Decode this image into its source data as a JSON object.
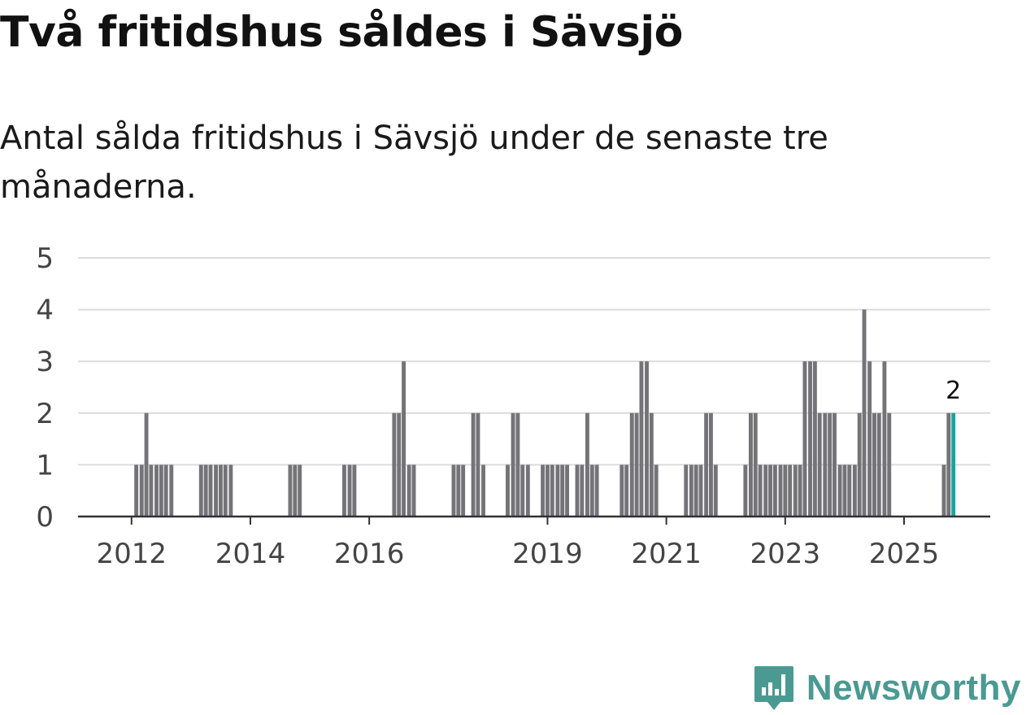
{
  "title": "Två fritidshus såldes i Sävsjö",
  "subtitle": "Antal sålda fritidshus i Sävsjö under de senaste tre månaderna.",
  "brand": {
    "name": "Newsworthy",
    "color": "#4a9a92",
    "icon": "bar-chart-badge-icon"
  },
  "chart_data": {
    "type": "bar",
    "title": "Två fritidshus såldes i Sävsjö",
    "subtitle": "Antal sålda fritidshus i Sävsjö under de senaste tre månaderna.",
    "xlabel": "",
    "ylabel": "",
    "ylim": [
      0,
      5
    ],
    "yticks": [
      0,
      1,
      2,
      3,
      4,
      5
    ],
    "grid": true,
    "bar_color": "#737378",
    "highlight_color": "#1aa39a",
    "x_start": 2011.1,
    "x_end": 2026.45,
    "xtick_labels": [
      {
        "label": "2012",
        "x": 2012.0
      },
      {
        "label": "2014",
        "x": 2014.0
      },
      {
        "label": "2016",
        "x": 2016.0
      },
      {
        "label": "2019",
        "x": 2019.0
      },
      {
        "label": "2021",
        "x": 2021.0
      },
      {
        "label": "2023",
        "x": 2023.0
      },
      {
        "label": "2025",
        "x": 2025.0
      }
    ],
    "bars": [
      {
        "x": 2012.08,
        "y": 1
      },
      {
        "x": 2012.17,
        "y": 1
      },
      {
        "x": 2012.25,
        "y": 2
      },
      {
        "x": 2012.33,
        "y": 1
      },
      {
        "x": 2012.42,
        "y": 1
      },
      {
        "x": 2012.5,
        "y": 1
      },
      {
        "x": 2012.58,
        "y": 1
      },
      {
        "x": 2012.67,
        "y": 1
      },
      {
        "x": 2013.17,
        "y": 1
      },
      {
        "x": 2013.25,
        "y": 1
      },
      {
        "x": 2013.33,
        "y": 1
      },
      {
        "x": 2013.42,
        "y": 1
      },
      {
        "x": 2013.5,
        "y": 1
      },
      {
        "x": 2013.58,
        "y": 1
      },
      {
        "x": 2013.67,
        "y": 1
      },
      {
        "x": 2014.67,
        "y": 1
      },
      {
        "x": 2014.75,
        "y": 1
      },
      {
        "x": 2014.83,
        "y": 1
      },
      {
        "x": 2015.58,
        "y": 1
      },
      {
        "x": 2015.67,
        "y": 1
      },
      {
        "x": 2015.75,
        "y": 1
      },
      {
        "x": 2016.42,
        "y": 2
      },
      {
        "x": 2016.5,
        "y": 2
      },
      {
        "x": 2016.58,
        "y": 3
      },
      {
        "x": 2016.67,
        "y": 1
      },
      {
        "x": 2016.75,
        "y": 1
      },
      {
        "x": 2017.42,
        "y": 1
      },
      {
        "x": 2017.5,
        "y": 1
      },
      {
        "x": 2017.58,
        "y": 1
      },
      {
        "x": 2017.75,
        "y": 2
      },
      {
        "x": 2017.83,
        "y": 2
      },
      {
        "x": 2017.92,
        "y": 1
      },
      {
        "x": 2018.33,
        "y": 1
      },
      {
        "x": 2018.42,
        "y": 2
      },
      {
        "x": 2018.5,
        "y": 2
      },
      {
        "x": 2018.58,
        "y": 1
      },
      {
        "x": 2018.67,
        "y": 1
      },
      {
        "x": 2018.92,
        "y": 1
      },
      {
        "x": 2019.0,
        "y": 1
      },
      {
        "x": 2019.08,
        "y": 1
      },
      {
        "x": 2019.17,
        "y": 1
      },
      {
        "x": 2019.25,
        "y": 1
      },
      {
        "x": 2019.33,
        "y": 1
      },
      {
        "x": 2019.5,
        "y": 1
      },
      {
        "x": 2019.58,
        "y": 1
      },
      {
        "x": 2019.67,
        "y": 2
      },
      {
        "x": 2019.75,
        "y": 1
      },
      {
        "x": 2019.83,
        "y": 1
      },
      {
        "x": 2020.25,
        "y": 1
      },
      {
        "x": 2020.33,
        "y": 1
      },
      {
        "x": 2020.42,
        "y": 2
      },
      {
        "x": 2020.5,
        "y": 2
      },
      {
        "x": 2020.58,
        "y": 3
      },
      {
        "x": 2020.67,
        "y": 3
      },
      {
        "x": 2020.75,
        "y": 2
      },
      {
        "x": 2020.83,
        "y": 1
      },
      {
        "x": 2021.33,
        "y": 1
      },
      {
        "x": 2021.42,
        "y": 1
      },
      {
        "x": 2021.5,
        "y": 1
      },
      {
        "x": 2021.58,
        "y": 1
      },
      {
        "x": 2021.67,
        "y": 2
      },
      {
        "x": 2021.75,
        "y": 2
      },
      {
        "x": 2021.83,
        "y": 1
      },
      {
        "x": 2022.33,
        "y": 1
      },
      {
        "x": 2022.42,
        "y": 2
      },
      {
        "x": 2022.5,
        "y": 2
      },
      {
        "x": 2022.58,
        "y": 1
      },
      {
        "x": 2022.67,
        "y": 1
      },
      {
        "x": 2022.75,
        "y": 1
      },
      {
        "x": 2022.83,
        "y": 1
      },
      {
        "x": 2022.92,
        "y": 1
      },
      {
        "x": 2023.0,
        "y": 1
      },
      {
        "x": 2023.08,
        "y": 1
      },
      {
        "x": 2023.17,
        "y": 1
      },
      {
        "x": 2023.25,
        "y": 1
      },
      {
        "x": 2023.33,
        "y": 3
      },
      {
        "x": 2023.42,
        "y": 3
      },
      {
        "x": 2023.5,
        "y": 3
      },
      {
        "x": 2023.58,
        "y": 2
      },
      {
        "x": 2023.67,
        "y": 2
      },
      {
        "x": 2023.75,
        "y": 2
      },
      {
        "x": 2023.83,
        "y": 2
      },
      {
        "x": 2023.92,
        "y": 1
      },
      {
        "x": 2024.0,
        "y": 1
      },
      {
        "x": 2024.08,
        "y": 1
      },
      {
        "x": 2024.17,
        "y": 1
      },
      {
        "x": 2024.25,
        "y": 2
      },
      {
        "x": 2024.33,
        "y": 4
      },
      {
        "x": 2024.42,
        "y": 3
      },
      {
        "x": 2024.5,
        "y": 2
      },
      {
        "x": 2024.58,
        "y": 2
      },
      {
        "x": 2024.67,
        "y": 3
      },
      {
        "x": 2024.75,
        "y": 2
      },
      {
        "x": 2025.67,
        "y": 1
      },
      {
        "x": 2025.75,
        "y": 2
      },
      {
        "x": 2025.83,
        "y": 2,
        "highlight": true,
        "label": "2"
      }
    ]
  }
}
